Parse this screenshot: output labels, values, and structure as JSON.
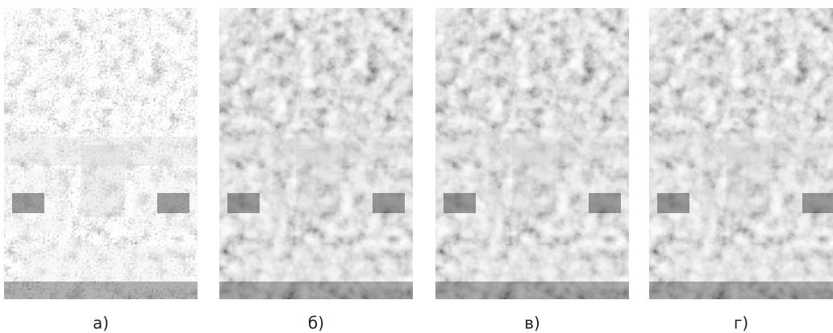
{
  "panels": [
    {
      "label": "а)"
    },
    {
      "label": "б)"
    },
    {
      "label": "в)"
    },
    {
      "label": "г)"
    }
  ]
}
